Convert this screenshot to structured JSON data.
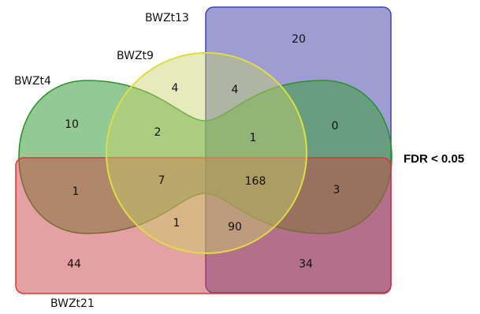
{
  "sets": {
    "bwzt13": {
      "label": "BWZt13",
      "color": "#5b5bb5"
    },
    "bwzt9": {
      "label": "BWZt9",
      "color": "#c8d06a"
    },
    "bwzt4": {
      "label": "BWZt4",
      "color": "#3a9e3a"
    },
    "bwzt21": {
      "label": "BWZt21",
      "color": "#cc4444"
    }
  },
  "threshold_label": "FDR < 0.05",
  "regions": [
    {
      "id": "t13-only",
      "value": "20"
    },
    {
      "id": "t9-only",
      "value": "4"
    },
    {
      "id": "t9-t13",
      "value": "4"
    },
    {
      "id": "t4-only",
      "value": "10"
    },
    {
      "id": "t4-t9",
      "value": "2"
    },
    {
      "id": "t4-t9-t13",
      "value": "1"
    },
    {
      "id": "t4-t13",
      "value": "0"
    },
    {
      "id": "t4-t21",
      "value": "1"
    },
    {
      "id": "t4-t9-t21",
      "value": "7"
    },
    {
      "id": "all-four",
      "value": "168"
    },
    {
      "id": "t4-t13-t21",
      "value": "3"
    },
    {
      "id": "t9-t21",
      "value": "1"
    },
    {
      "id": "t9-t13-t21",
      "value": "90"
    },
    {
      "id": "t21-only",
      "value": "44"
    },
    {
      "id": "t13-t21",
      "value": "34"
    }
  ]
}
